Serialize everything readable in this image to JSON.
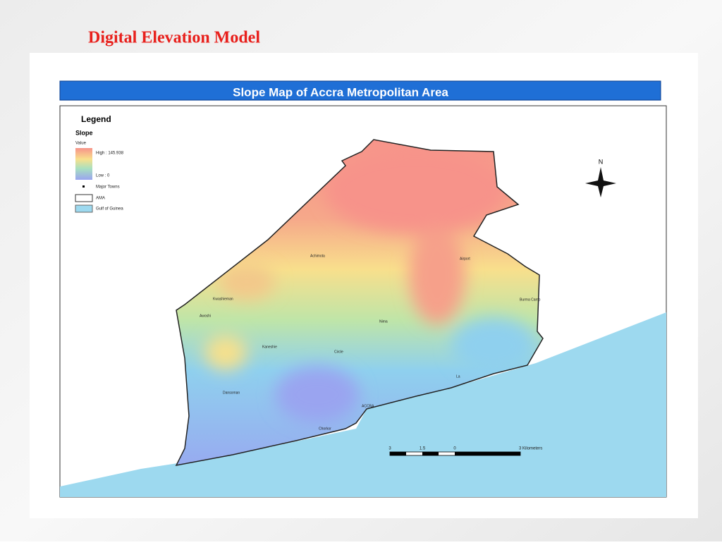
{
  "slide": {
    "title": "Digital Elevation Model"
  },
  "map": {
    "title": "Slope Map of Accra Metropolitan Area",
    "legend": {
      "heading": "Legend",
      "layer": "Slope",
      "field": "Value",
      "high": "High : 145.938",
      "low": "Low : 0",
      "towns": "Major Towns",
      "area": "AMA",
      "sea": "Gulf of Guinea"
    },
    "north": "N",
    "scale": {
      "labels": [
        "3",
        "1.5",
        "0",
        "3 Kilometers"
      ]
    },
    "towns": [
      "Achimota",
      "Airport",
      "Kwashieman",
      "Awoshi",
      "Burma Camp",
      "Nima",
      "Kaneshie",
      "Circle",
      "Dansoman",
      "La",
      "ACCRA",
      "Chorkor"
    ]
  }
}
